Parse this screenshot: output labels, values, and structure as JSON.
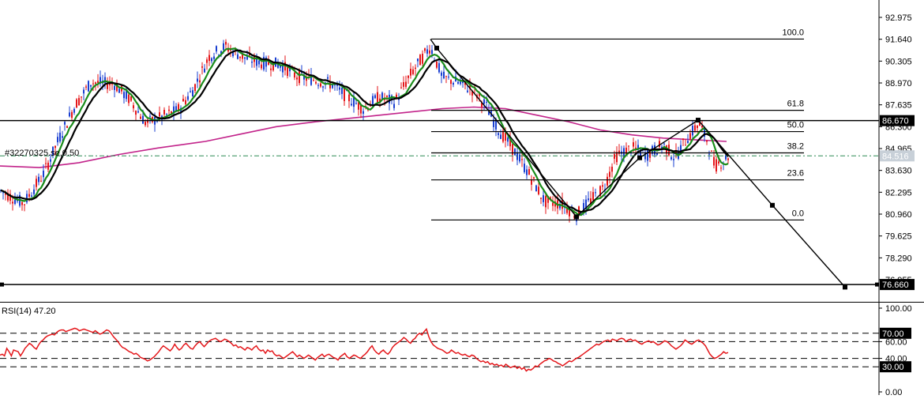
{
  "chart_data": [
    {
      "type": "candlestick",
      "symbol_label": "#32270325.se,0.50",
      "ylim": [
        75.8,
        94.0
      ],
      "y_ticks": [
        "92.975",
        "91.640",
        "90.305",
        "88.970",
        "87.635",
        "86.300",
        "84.965",
        "83.630",
        "82.295",
        "80.960",
        "79.625",
        "78.290",
        "76.955"
      ],
      "colors": {
        "up": "#1a3fd1",
        "down": "#e4161a",
        "ma_green": "#1a8c1a",
        "ma_black": "#000000",
        "ma_magenta": "#c2238a",
        "current_price": "#2e8b57",
        "marker_bg": "#000000"
      },
      "horizontal_lines": [
        {
          "name": "resistance",
          "value": 86.67,
          "label": "86.670"
        },
        {
          "name": "support",
          "value": 76.66,
          "label": "76.660"
        }
      ],
      "current_price": {
        "value": 84.516,
        "label": "84.516"
      },
      "fibonacci": {
        "levels": [
          {
            "label": "100.0",
            "value": 91.65
          },
          {
            "label": "61.8",
            "value": 87.3
          },
          {
            "label": "50.0",
            "value": 86.0
          },
          {
            "label": "38.2",
            "value": 84.7
          },
          {
            "label": "23.6",
            "value": 83.05
          },
          {
            "label": "0.0",
            "value": 80.6
          }
        ]
      },
      "projection_path": [
        {
          "x": 545,
          "y": 91.65
        },
        {
          "x": 553,
          "y": 91.1
        },
        {
          "x": 730,
          "y": 80.8
        },
        {
          "x": 810,
          "y": 84.4
        },
        {
          "x": 884,
          "y": 86.7
        },
        {
          "x": 978,
          "y": 81.5
        },
        {
          "x": 1070,
          "y": 76.5
        }
      ],
      "price_path": [
        {
          "x": 0,
          "y": 82.4
        },
        {
          "x": 30,
          "y": 81.6
        },
        {
          "x": 55,
          "y": 83.4
        },
        {
          "x": 75,
          "y": 85.6
        },
        {
          "x": 95,
          "y": 87.6
        },
        {
          "x": 115,
          "y": 89.0
        },
        {
          "x": 145,
          "y": 88.9
        },
        {
          "x": 165,
          "y": 87.9
        },
        {
          "x": 185,
          "y": 86.5
        },
        {
          "x": 205,
          "y": 86.9
        },
        {
          "x": 225,
          "y": 87.3
        },
        {
          "x": 245,
          "y": 88.6
        },
        {
          "x": 265,
          "y": 90.6
        },
        {
          "x": 285,
          "y": 91.2
        },
        {
          "x": 310,
          "y": 90.5
        },
        {
          "x": 330,
          "y": 90.2
        },
        {
          "x": 355,
          "y": 90.1
        },
        {
          "x": 375,
          "y": 89.4
        },
        {
          "x": 395,
          "y": 89.2
        },
        {
          "x": 420,
          "y": 88.9
        },
        {
          "x": 440,
          "y": 88.1
        },
        {
          "x": 460,
          "y": 87.4
        },
        {
          "x": 480,
          "y": 88.1
        },
        {
          "x": 500,
          "y": 87.8
        },
        {
          "x": 520,
          "y": 89.5
        },
        {
          "x": 545,
          "y": 91.2
        },
        {
          "x": 560,
          "y": 89.3
        },
        {
          "x": 580,
          "y": 89.0
        },
        {
          "x": 600,
          "y": 88.5
        },
        {
          "x": 615,
          "y": 87.6
        },
        {
          "x": 630,
          "y": 86.2
        },
        {
          "x": 650,
          "y": 84.9
        },
        {
          "x": 670,
          "y": 83.4
        },
        {
          "x": 690,
          "y": 81.7
        },
        {
          "x": 710,
          "y": 81.6
        },
        {
          "x": 730,
          "y": 80.9
        },
        {
          "x": 750,
          "y": 81.9
        },
        {
          "x": 765,
          "y": 82.6
        },
        {
          "x": 780,
          "y": 84.5
        },
        {
          "x": 800,
          "y": 85.0
        },
        {
          "x": 820,
          "y": 84.6
        },
        {
          "x": 840,
          "y": 85.2
        },
        {
          "x": 855,
          "y": 84.4
        },
        {
          "x": 870,
          "y": 85.6
        },
        {
          "x": 885,
          "y": 86.5
        },
        {
          "x": 895,
          "y": 85.5
        },
        {
          "x": 905,
          "y": 83.9
        },
        {
          "x": 915,
          "y": 84.2
        },
        {
          "x": 922,
          "y": 84.5
        }
      ],
      "ma_magenta_path": [
        {
          "x": 0,
          "y": 83.9
        },
        {
          "x": 50,
          "y": 83.8
        },
        {
          "x": 100,
          "y": 84.1
        },
        {
          "x": 150,
          "y": 84.6
        },
        {
          "x": 200,
          "y": 85.0
        },
        {
          "x": 260,
          "y": 85.4
        },
        {
          "x": 300,
          "y": 85.8
        },
        {
          "x": 350,
          "y": 86.3
        },
        {
          "x": 400,
          "y": 86.6
        },
        {
          "x": 460,
          "y": 86.9
        },
        {
          "x": 520,
          "y": 87.2
        },
        {
          "x": 560,
          "y": 87.4
        },
        {
          "x": 600,
          "y": 87.5
        },
        {
          "x": 640,
          "y": 87.4
        },
        {
          "x": 680,
          "y": 87.0
        },
        {
          "x": 720,
          "y": 86.6
        },
        {
          "x": 760,
          "y": 86.1
        },
        {
          "x": 800,
          "y": 85.8
        },
        {
          "x": 840,
          "y": 85.6
        },
        {
          "x": 880,
          "y": 85.5
        },
        {
          "x": 920,
          "y": 85.4
        }
      ]
    },
    {
      "type": "line",
      "title": "RSI(14) 47.20",
      "ylim": [
        0,
        100
      ],
      "y_ticks": [
        "100.00",
        "60.00",
        "40.00",
        "0.00"
      ],
      "levels": [
        {
          "value": 70,
          "label": "70.00"
        },
        {
          "value": 30,
          "label": "30.00"
        }
      ],
      "dashed_levels": [
        70,
        60,
        40,
        30
      ],
      "series": [
        {
          "values": [
            44,
            45,
            43,
            52,
            48,
            43,
            50,
            49,
            48,
            43,
            47,
            52,
            55,
            58,
            56,
            53,
            51,
            56,
            60,
            62,
            65,
            67,
            68,
            69,
            68,
            71,
            73,
            74,
            74,
            72,
            73,
            74,
            75,
            76,
            75,
            73,
            74,
            75,
            74,
            73,
            72,
            71,
            73,
            71,
            69,
            70,
            72,
            74,
            73,
            70,
            66,
            63,
            60,
            56,
            53,
            52,
            50,
            48,
            47,
            45,
            46,
            44,
            41,
            40,
            39,
            37,
            38,
            40,
            42,
            45,
            48,
            52,
            55,
            53,
            51,
            49,
            52,
            57,
            53,
            50,
            52,
            56,
            58,
            55,
            52,
            51,
            55,
            58,
            60,
            57,
            54,
            57,
            60,
            62,
            63,
            64,
            62,
            60,
            61,
            63,
            62,
            60,
            58,
            55,
            56,
            53,
            54,
            52,
            50,
            53,
            52,
            50,
            53,
            55,
            51,
            49,
            50,
            46,
            50,
            48,
            49,
            45,
            43,
            44,
            42,
            40,
            42,
            44,
            46,
            48,
            45,
            42,
            44,
            42,
            40,
            42,
            44,
            42,
            40,
            38,
            41,
            43,
            45,
            42,
            44,
            45,
            43,
            41,
            40,
            38,
            42,
            44,
            46,
            42,
            40,
            42,
            44,
            43,
            41,
            40,
            43,
            45,
            48,
            52,
            55,
            50,
            47,
            45,
            48,
            50,
            47,
            45,
            48,
            53,
            56,
            58,
            60,
            62,
            65,
            63,
            60,
            58,
            62,
            64,
            68,
            70,
            68,
            72,
            75,
            66,
            60,
            56,
            54,
            52,
            51,
            50,
            48,
            46,
            47,
            50,
            48,
            46,
            47,
            45,
            44,
            45,
            43,
            42,
            44,
            43,
            40,
            38,
            36,
            37,
            35,
            36,
            33,
            34,
            32,
            33,
            31,
            32,
            30,
            33,
            31,
            29,
            30,
            31,
            28,
            30,
            27,
            29,
            25,
            27,
            26,
            28,
            31,
            30,
            33,
            35,
            37,
            38,
            40,
            39,
            37,
            36,
            34,
            33,
            31,
            33,
            35,
            37,
            36,
            38,
            40,
            41,
            43,
            45,
            47,
            49,
            51,
            53,
            55,
            57,
            56,
            58,
            60,
            61,
            62,
            60,
            63,
            62,
            61,
            63,
            64,
            63,
            60,
            62,
            63,
            61,
            62,
            60,
            58,
            57,
            59,
            60,
            61,
            59,
            60,
            58,
            56,
            57,
            59,
            61,
            60,
            58,
            55,
            53,
            51,
            53,
            55,
            58,
            62,
            60,
            58,
            57,
            59,
            61,
            62,
            60,
            58,
            55,
            50,
            45,
            42,
            40,
            41,
            43,
            45,
            48,
            46,
            47
          ]
        }
      ]
    }
  ]
}
